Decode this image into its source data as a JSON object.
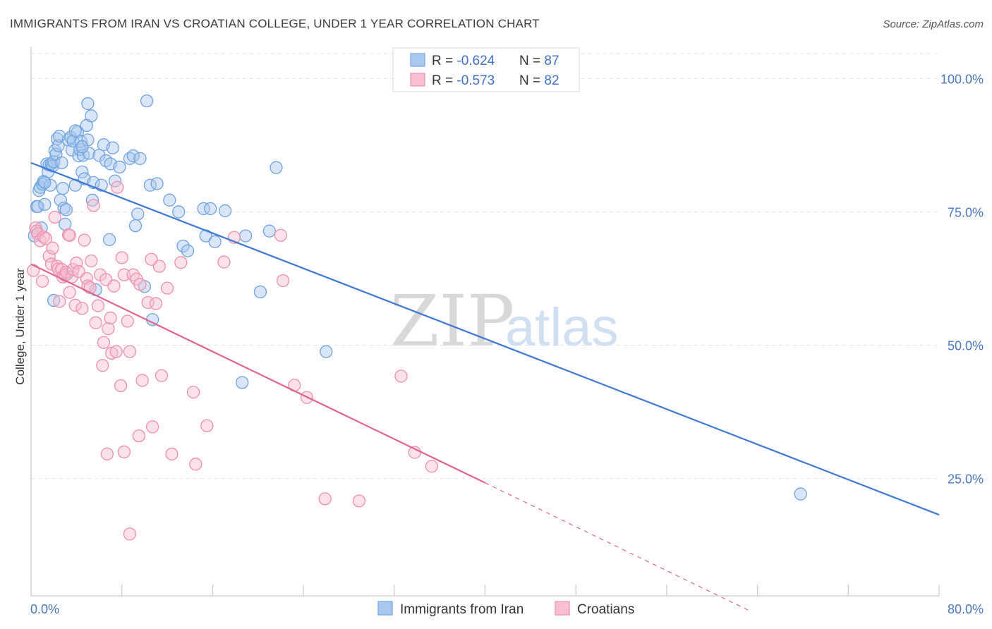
{
  "chart_data": {
    "type": "scatter",
    "title": "IMMIGRANTS FROM IRAN VS CROATIAN COLLEGE, UNDER 1 YEAR CORRELATION CHART",
    "source": "Source: ZipAtlas.com",
    "ylabel": "College, Under 1 year",
    "xlim": [
      0,
      80
    ],
    "ylim": [
      3,
      106
    ],
    "x_tick_labels": {
      "min": "0.0%",
      "max": "80.0%"
    },
    "x_minor_ticks": [
      0,
      8,
      16,
      24,
      32,
      40,
      48,
      56,
      64,
      72,
      80
    ],
    "y_ticks": [
      {
        "value": 100,
        "label": "100.0%"
      },
      {
        "value": 75,
        "label": "75.0%"
      },
      {
        "value": 50,
        "label": "50.0%"
      },
      {
        "value": 25,
        "label": "25.0%"
      }
    ],
    "watermark": {
      "zip": "ZIP",
      "atlas": "atlas"
    },
    "legend": {
      "entries": [
        {
          "r_label": "R = ",
          "r_value": "-0.624",
          "n_label": "N = ",
          "n_value": "87"
        },
        {
          "r_label": "R = ",
          "r_value": "-0.573",
          "n_label": "N = ",
          "n_value": "82"
        }
      ]
    },
    "series": [
      {
        "name": "Immigrants from Iran",
        "color": "#6fa3e0",
        "fill": "#a9c8ee",
        "line_color": "#3a78d4",
        "trend": {
          "x": [
            0,
            80
          ],
          "y": [
            84.2,
            18.2
          ],
          "dash_from": null
        },
        "points": [
          [
            0.3,
            70.5
          ],
          [
            0.5,
            76
          ],
          [
            0.6,
            76
          ],
          [
            0.7,
            79
          ],
          [
            0.8,
            79.6
          ],
          [
            0.9,
            72
          ],
          [
            1.0,
            80.2
          ],
          [
            1.1,
            80.7
          ],
          [
            1.2,
            76.4
          ],
          [
            1.4,
            84
          ],
          [
            1.5,
            82.5
          ],
          [
            1.6,
            83.8
          ],
          [
            1.7,
            80
          ],
          [
            1.8,
            84
          ],
          [
            1.9,
            83.6
          ],
          [
            2.0,
            84.4
          ],
          [
            2.1,
            86.5
          ],
          [
            2.2,
            85.8
          ],
          [
            2.3,
            88.7
          ],
          [
            2.4,
            87.4
          ],
          [
            2.5,
            89.2
          ],
          [
            2.6,
            77.2
          ],
          [
            2.8,
            79.4
          ],
          [
            2.9,
            75.7
          ],
          [
            3.0,
            72.7
          ],
          [
            3.1,
            75.4
          ],
          [
            3.3,
            88.5
          ],
          [
            3.5,
            89
          ],
          [
            3.6,
            86.6
          ],
          [
            3.7,
            88.3
          ],
          [
            3.9,
            80
          ],
          [
            4.1,
            90
          ],
          [
            4.2,
            85.5
          ],
          [
            4.3,
            86.7
          ],
          [
            4.4,
            88.2
          ],
          [
            4.5,
            82.5
          ],
          [
            4.6,
            85.6
          ],
          [
            4.7,
            81.2
          ],
          [
            4.9,
            91.2
          ],
          [
            5.0,
            88.5
          ],
          [
            5.1,
            86
          ],
          [
            5.3,
            93
          ],
          [
            5.4,
            77.2
          ],
          [
            5.5,
            80.5
          ],
          [
            5.7,
            60.4
          ],
          [
            6.0,
            85.6
          ],
          [
            6.2,
            80
          ],
          [
            6.4,
            87.6
          ],
          [
            6.6,
            84.6
          ],
          [
            6.9,
            69.8
          ],
          [
            7.0,
            84
          ],
          [
            7.2,
            87
          ],
          [
            7.4,
            80.8
          ],
          [
            7.8,
            83.4
          ],
          [
            8.7,
            85
          ],
          [
            9.0,
            85.5
          ],
          [
            9.2,
            72.4
          ],
          [
            9.4,
            74.6
          ],
          [
            9.6,
            85
          ],
          [
            10.0,
            61
          ],
          [
            10.2,
            95.8
          ],
          [
            10.5,
            80
          ],
          [
            10.7,
            54.8
          ],
          [
            11.1,
            80.3
          ],
          [
            12.2,
            77.2
          ],
          [
            13.0,
            75
          ],
          [
            13.4,
            68.6
          ],
          [
            13.8,
            67.7
          ],
          [
            15.2,
            75.6
          ],
          [
            15.4,
            70.5
          ],
          [
            15.8,
            75.6
          ],
          [
            16.2,
            69.4
          ],
          [
            17.1,
            75.2
          ],
          [
            18.6,
            43
          ],
          [
            18.9,
            70.5
          ],
          [
            20.2,
            60
          ],
          [
            21.0,
            71.4
          ],
          [
            21.6,
            83.3
          ],
          [
            26.0,
            48.8
          ],
          [
            67.8,
            22.1
          ],
          [
            5.0,
            95.3
          ],
          [
            3.2,
            63.4
          ],
          [
            2.0,
            58.4
          ],
          [
            1.2,
            80.5
          ],
          [
            4.5,
            87.2
          ],
          [
            2.7,
            84.2
          ],
          [
            3.9,
            90.2
          ]
        ]
      },
      {
        "name": "Croatians",
        "color": "#ee8fb0",
        "fill": "#f7bfd1",
        "line_color": "#e0648e",
        "trend": {
          "x": [
            0,
            40
          ],
          "y": [
            65.2,
            24.2
          ],
          "dash_from": 40,
          "dash_to": [
            63.5,
            0
          ]
        },
        "points": [
          [
            0.2,
            64
          ],
          [
            0.4,
            72
          ],
          [
            0.5,
            71.4
          ],
          [
            0.6,
            70.9
          ],
          [
            0.8,
            69.6
          ],
          [
            1.0,
            62
          ],
          [
            1.1,
            70.3
          ],
          [
            1.3,
            70
          ],
          [
            1.6,
            66.7
          ],
          [
            1.8,
            65.2
          ],
          [
            1.9,
            68.2
          ],
          [
            2.1,
            74
          ],
          [
            2.3,
            64.8
          ],
          [
            2.4,
            64.3
          ],
          [
            2.5,
            58.2
          ],
          [
            2.7,
            64.2
          ],
          [
            2.8,
            62.8
          ],
          [
            3.0,
            63.1
          ],
          [
            3.1,
            63.7
          ],
          [
            3.3,
            70.7
          ],
          [
            3.4,
            59.9
          ],
          [
            3.6,
            62.8
          ],
          [
            3.7,
            64.2
          ],
          [
            3.9,
            57.5
          ],
          [
            4.0,
            65.4
          ],
          [
            4.2,
            63.8
          ],
          [
            4.5,
            56.9
          ],
          [
            4.7,
            69.7
          ],
          [
            4.9,
            62.5
          ],
          [
            5.0,
            61.1
          ],
          [
            5.2,
            60.8
          ],
          [
            5.3,
            65.8
          ],
          [
            5.5,
            76.2
          ],
          [
            5.7,
            54.2
          ],
          [
            5.9,
            57.4
          ],
          [
            6.1,
            63.2
          ],
          [
            6.3,
            46.2
          ],
          [
            6.4,
            50.5
          ],
          [
            6.6,
            62.3
          ],
          [
            6.8,
            53.1
          ],
          [
            7.1,
            48.5
          ],
          [
            7.3,
            61.1
          ],
          [
            7.5,
            48.8
          ],
          [
            7.6,
            79.6
          ],
          [
            7.9,
            42.4
          ],
          [
            8.0,
            66.4
          ],
          [
            8.2,
            63.2
          ],
          [
            8.5,
            54.5
          ],
          [
            8.7,
            48.8
          ],
          [
            9.0,
            63.2
          ],
          [
            9.3,
            62.4
          ],
          [
            9.6,
            61.4
          ],
          [
            9.8,
            43.4
          ],
          [
            10.3,
            58
          ],
          [
            10.7,
            34.7
          ],
          [
            11.0,
            57.8
          ],
          [
            11.3,
            64.8
          ],
          [
            12.0,
            60.7
          ],
          [
            12.4,
            29.6
          ],
          [
            13.2,
            65.5
          ],
          [
            14.3,
            41.2
          ],
          [
            14.5,
            27.7
          ],
          [
            15.5,
            34.9
          ],
          [
            17.0,
            65.6
          ],
          [
            17.9,
            70.2
          ],
          [
            22.0,
            70.6
          ],
          [
            22.2,
            62.1
          ],
          [
            23.2,
            42.5
          ],
          [
            24.3,
            40.2
          ],
          [
            25.9,
            21.2
          ],
          [
            28.9,
            20.8
          ],
          [
            32.6,
            44.2
          ],
          [
            33.8,
            29.9
          ],
          [
            35.3,
            27.3
          ],
          [
            8.2,
            30
          ],
          [
            6.7,
            29.6
          ],
          [
            8.7,
            14.6
          ],
          [
            9.5,
            33
          ],
          [
            10.6,
            66.1
          ],
          [
            7.0,
            55.1
          ],
          [
            11.5,
            44.3
          ],
          [
            3.4,
            70.6
          ]
        ]
      }
    ]
  },
  "bottom_legend": [
    {
      "label": "Immigrants from Iran"
    },
    {
      "label": "Croatians"
    }
  ]
}
